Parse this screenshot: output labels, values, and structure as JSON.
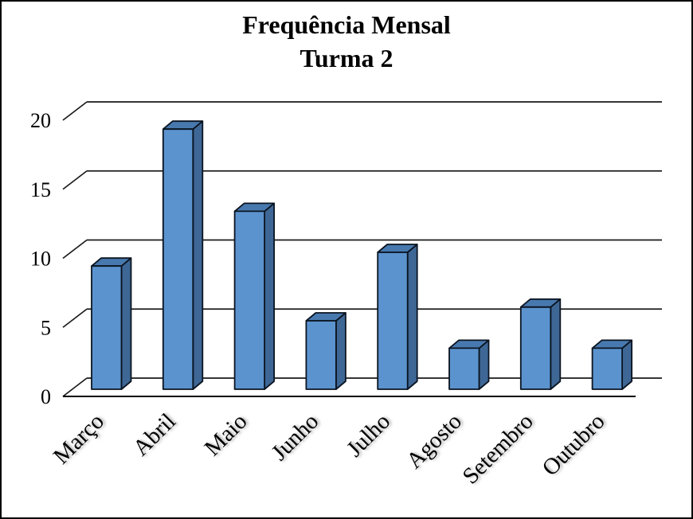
{
  "frame": {
    "background": "#FFFFFF",
    "border_color": "#000000"
  },
  "title": {
    "line1": "Frequência Mensal",
    "line2": "Turma 2"
  },
  "chart_data": {
    "type": "bar",
    "style": "3d-column",
    "title": "Frequência Mensal",
    "subtitle": "Turma 2",
    "categories": [
      "Março",
      "Abril",
      "Maio",
      "Junho",
      "Julho",
      "Agosto",
      "Setembro",
      "Outubro"
    ],
    "values": [
      9,
      19,
      13,
      5,
      10,
      3,
      6,
      3
    ],
    "xlabel": "",
    "ylabel": "",
    "ylim": [
      0,
      20
    ],
    "yticks": [
      0,
      5,
      10,
      15,
      20
    ],
    "ytick_labels": [
      "0",
      "5",
      "10",
      "15",
      "20"
    ],
    "grid": true,
    "legend": false,
    "colors": {
      "bar_front": "#5B93CE",
      "bar_top": "#4879AE",
      "bar_side": "#3E6795",
      "bar_outline": "#0B1420",
      "grid_line": "#1A1A1A",
      "axis_line": "#000000",
      "text": "#000000"
    }
  }
}
